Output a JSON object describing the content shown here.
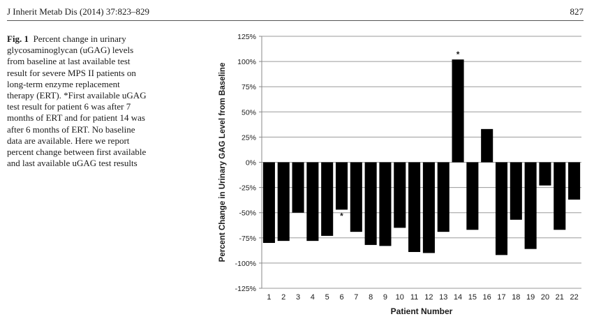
{
  "header": {
    "journal": "J Inherit Metab Dis (2014) 37:823–829",
    "page_number": "827"
  },
  "caption": {
    "label": "Fig. 1",
    "text": "Percent change in urinary glycosaminoglycan (uGAG) levels from baseline at last available test result for severe MPS II patients on long-term enzyme replacement therapy (ERT). *First available uGAG test result for patient 6 was after 7 months of ERT and for patient 14 was after 6 months of ERT. No baseline data are available. Here we report percent change between first available and last available uGAG test results"
  },
  "chart_data": {
    "type": "bar",
    "title": "",
    "xlabel": "Patient Number",
    "ylabel": "Percent Change in Urinary  GAG Level from Baseline",
    "categories": [
      "1",
      "2",
      "3",
      "4",
      "5",
      "6",
      "7",
      "8",
      "9",
      "10",
      "11",
      "12",
      "13",
      "14",
      "15",
      "16",
      "17",
      "18",
      "19",
      "20",
      "21",
      "22"
    ],
    "values": [
      -80,
      -78,
      -50,
      -78,
      -73,
      -47,
      -69,
      -82,
      -83,
      -65,
      -89,
      -90,
      -69,
      102,
      -67,
      33,
      -92,
      -57,
      -86,
      -23,
      -67,
      -37
    ],
    "ylim": [
      -125,
      125
    ],
    "yticks": [
      125,
      100,
      75,
      50,
      25,
      0,
      -25,
      -50,
      -75,
      -100,
      -125
    ],
    "ytick_labels": [
      "125%",
      "100%",
      "75%",
      "50%",
      "25%",
      "0%",
      "-25%",
      "-50%",
      "-75%",
      "-100%",
      "-125%"
    ],
    "annotations": [
      {
        "category": "6",
        "text": "*"
      },
      {
        "category": "14",
        "text": "*"
      }
    ],
    "grid": true,
    "bar_color": "#000000"
  }
}
